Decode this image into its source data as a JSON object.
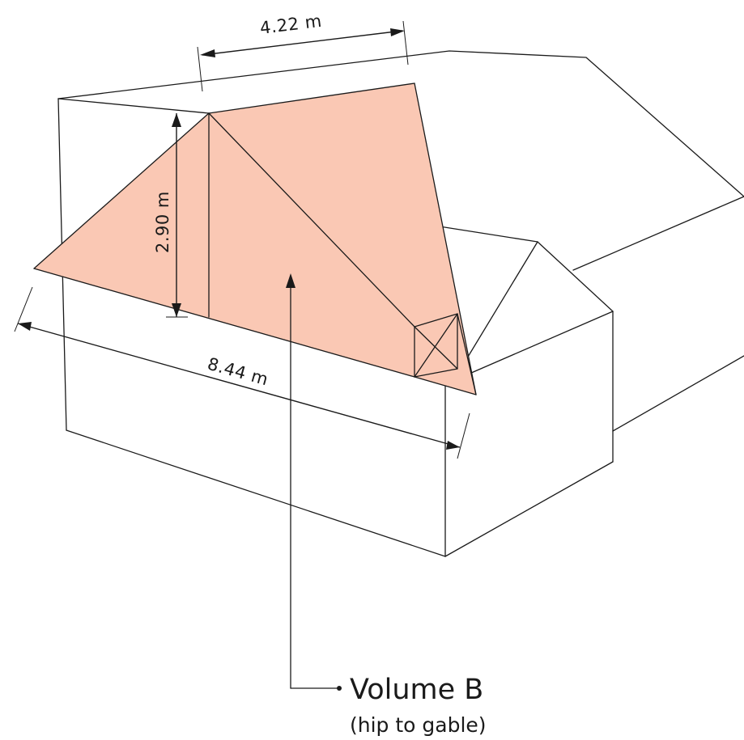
{
  "colors": {
    "volume_fill": "#fac8b4",
    "line": "#1a1a1a",
    "background": "#ffffff"
  },
  "dimensions": {
    "ridge_length": "4.22 m",
    "height": "2.90 m",
    "eaves_length": "8.44 m"
  },
  "callout": {
    "title": "Volume B",
    "subtitle": "(hip to gable)"
  }
}
